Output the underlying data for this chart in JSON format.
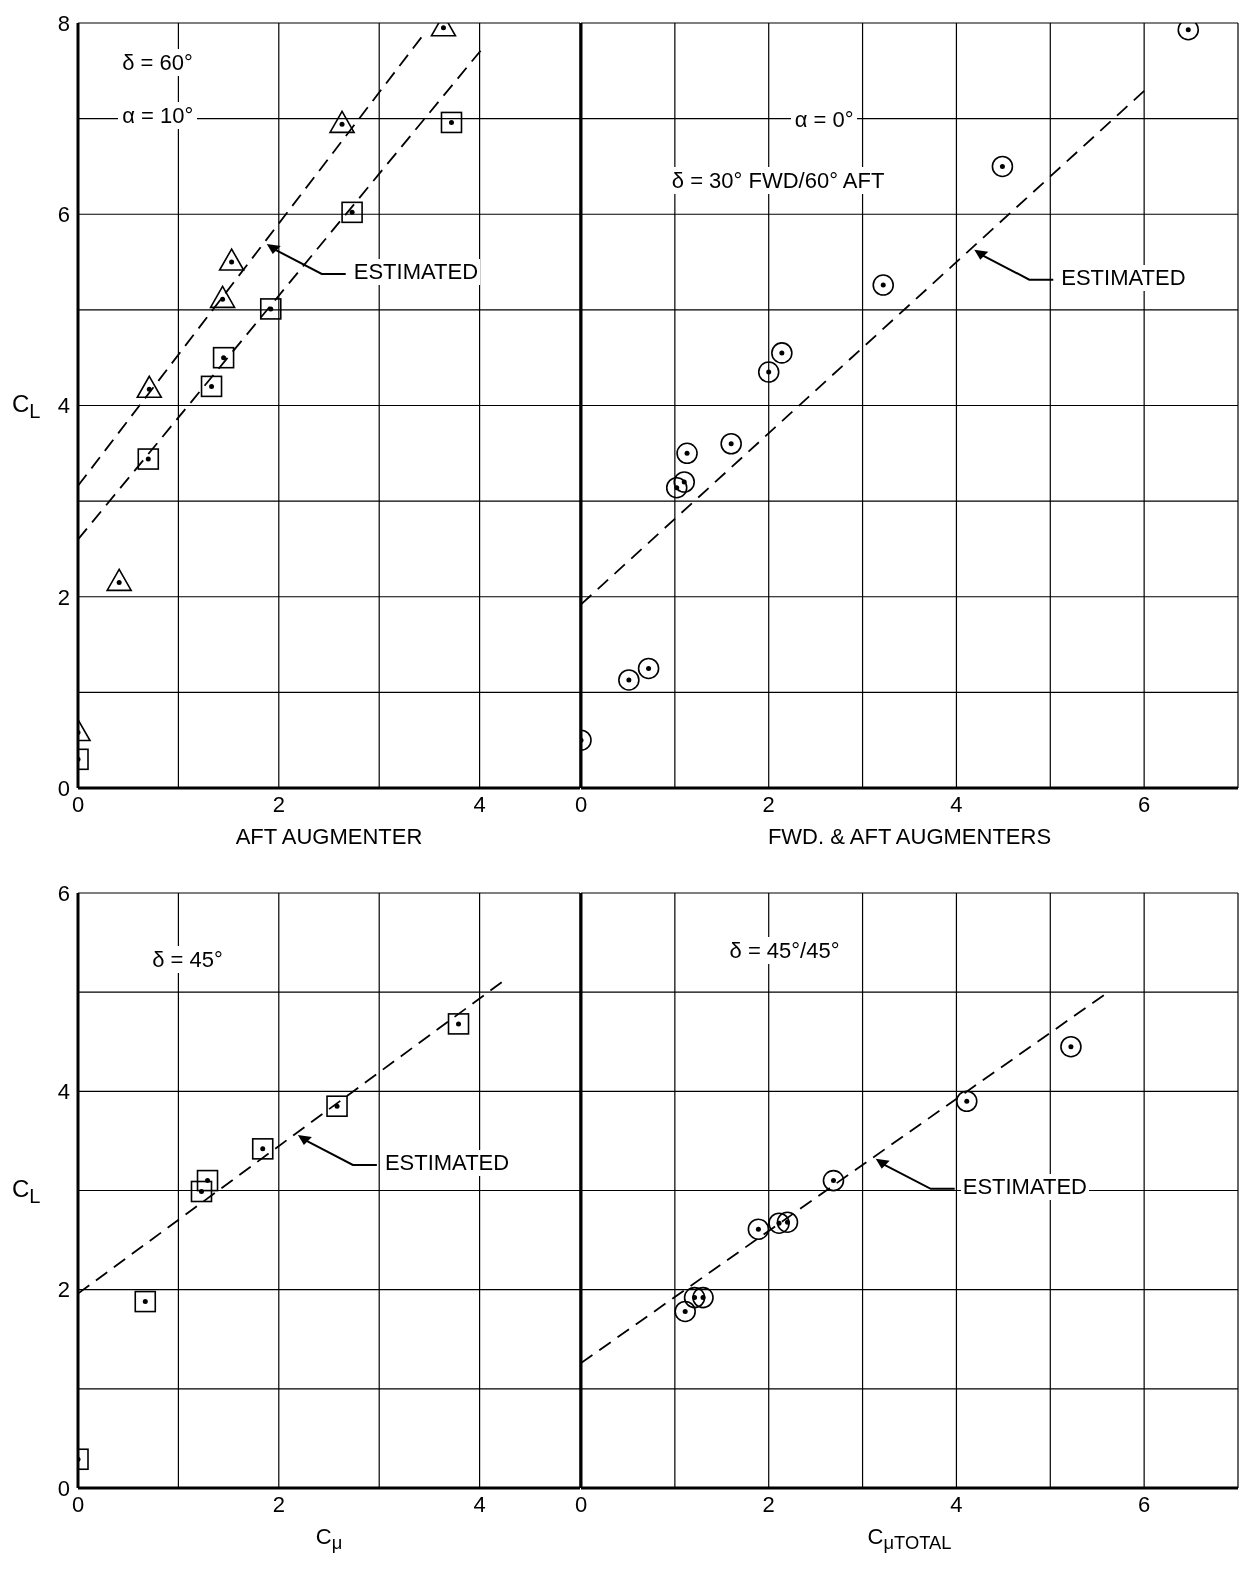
{
  "chart_data": [
    {
      "type": "scatter",
      "xlabel": "AFT AUGMENTER",
      "ylabel": "C$_{L}$",
      "xlim": [
        0,
        5
      ],
      "xticks": [
        0,
        {
          "value": 1,
          "label": null
        },
        2,
        {
          "value": 3,
          "label": null
        },
        4,
        {
          "value": 5,
          "label": null
        }
      ],
      "ylim": [
        0,
        8
      ],
      "yticks": [
        0,
        {
          "value": 1,
          "label": null
        },
        2,
        {
          "value": 3,
          "label": null
        },
        4,
        {
          "value": 5,
          "label": null
        },
        6,
        {
          "value": 7,
          "label": null
        },
        8
      ],
      "grid": true,
      "annotations": [
        "δ = 60°",
        "α = 10°",
        {
          "text": "ESTIMATED",
          "x": 1.88,
          "y": 5.69
        }
      ],
      "series": [
        {
          "marker": "triangle",
          "color": "#000000",
          "x": [
            0,
            0.41,
            0.71,
            1.44,
            1.53,
            2.63,
            3.64
          ],
          "values": [
            0.58,
            2.15,
            4.17,
            5.11,
            5.5,
            6.94,
            7.95
          ]
        },
        {
          "marker": "square",
          "color": "#000000",
          "x": [
            0,
            0.7,
            1.33,
            1.45,
            1.92,
            2.73,
            3.72
          ],
          "values": [
            0.3,
            3.44,
            4.2,
            4.5,
            5.01,
            6.02,
            6.96
          ]
        },
        {
          "type": "line",
          "marker": "none",
          "line_style": "dashed",
          "color": "#000000",
          "x": [
            0,
            3.42
          ],
          "values": [
            3.16,
            7.85
          ]
        },
        {
          "type": "line",
          "marker": "none",
          "line_style": "dashed",
          "color": "#000000",
          "x": [
            0,
            4.01
          ],
          "values": [
            2.6,
            7.71
          ]
        }
      ]
    },
    {
      "type": "scatter",
      "xlabel": "FWD. & AFT AUGMENTERS",
      "xlim": [
        0,
        7
      ],
      "xticks": [
        0,
        {
          "value": 1,
          "label": null
        },
        2,
        {
          "value": 3,
          "label": null
        },
        4,
        {
          "value": 5,
          "label": null
        },
        6,
        {
          "value": 7,
          "label": null
        }
      ],
      "ylim": [
        0,
        8
      ],
      "yticks": [
        0,
        {
          "value": 1,
          "label": null
        },
        2,
        {
          "value": 3,
          "label": null
        },
        4,
        {
          "value": 5,
          "label": null
        },
        6,
        {
          "value": 7,
          "label": null
        },
        8
      ],
      "grid": true,
      "tick_labels": "x",
      "annotations": [
        "α = 0°",
        "δ = 30° FWD/60° AFT",
        {
          "text": "ESTIMATED",
          "x": 4.19,
          "y": 5.63
        }
      ],
      "series": [
        {
          "marker": "circle",
          "color": "#000000",
          "x": [
            0,
            0.51,
            0.72,
            1.02,
            1.1,
            1.13,
            1.6,
            2.0,
            2.14,
            3.22,
            4.49,
            6.47
          ],
          "values": [
            0.5,
            1.13,
            1.25,
            3.14,
            3.2,
            3.5,
            3.6,
            4.35,
            4.55,
            5.26,
            6.5,
            7.93
          ]
        },
        {
          "type": "line",
          "marker": "none",
          "line_style": "dashed",
          "color": "#000000",
          "x": [
            0,
            6.0
          ],
          "values": [
            1.92,
            7.29
          ]
        }
      ]
    },
    {
      "type": "scatter",
      "xlabel": "C$_{μ}$",
      "ylabel": "C$_{L}$",
      "xlim": [
        0,
        5
      ],
      "xticks": [
        0,
        {
          "value": 1,
          "label": null
        },
        2,
        {
          "value": 3,
          "label": null
        },
        4,
        {
          "value": 5,
          "label": null
        }
      ],
      "ylim": [
        0,
        6
      ],
      "yticks": [
        0,
        {
          "value": 1,
          "label": null
        },
        2,
        {
          "value": 3,
          "label": null
        },
        4,
        {
          "value": 5,
          "label": null
        },
        6
      ],
      "grid": true,
      "annotations": [
        "δ = 45°",
        {
          "text": "ESTIMATED",
          "x": 2.19,
          "y": 3.56
        }
      ],
      "series": [
        {
          "marker": "square",
          "color": "#000000",
          "x": [
            0,
            0.67,
            1.23,
            1.29,
            1.84,
            2.58,
            3.79
          ],
          "values": [
            0.29,
            1.88,
            2.99,
            3.1,
            3.42,
            3.85,
            4.68
          ]
        },
        {
          "type": "line",
          "marker": "none",
          "line_style": "dashed",
          "color": "#000000",
          "x": [
            0,
            4.22
          ],
          "values": [
            1.96,
            5.1
          ]
        }
      ]
    },
    {
      "type": "scatter",
      "xlabel": "C$_{μTOTAL}$",
      "xlim": [
        0,
        7
      ],
      "xticks": [
        0,
        {
          "value": 1,
          "label": null
        },
        2,
        {
          "value": 3,
          "label": null
        },
        4,
        {
          "value": 5,
          "label": null
        },
        6,
        {
          "value": 7,
          "label": null
        }
      ],
      "ylim": [
        0,
        6
      ],
      "yticks": [
        0,
        {
          "value": 1,
          "label": null
        },
        2,
        {
          "value": 3,
          "label": null
        },
        4,
        {
          "value": 5,
          "label": null
        },
        6
      ],
      "grid": true,
      "tick_labels": "x",
      "annotations": [
        "δ = 45°/45°",
        {
          "text": "ESTIMATED",
          "x": 3.14,
          "y": 3.32
        }
      ],
      "series": [
        {
          "marker": "circle",
          "color": "#000000",
          "x": [
            1.11,
            1.21,
            1.3,
            1.89,
            2.11,
            2.2,
            2.69,
            4.11,
            5.22
          ],
          "values": [
            1.78,
            1.92,
            1.92,
            2.61,
            2.67,
            2.68,
            3.1,
            3.9,
            4.45
          ]
        },
        {
          "type": "line",
          "marker": "none",
          "line_style": "dashed",
          "color": "#000000",
          "x": [
            0,
            5.57
          ],
          "values": [
            1.26,
            4.97
          ]
        }
      ]
    }
  ]
}
